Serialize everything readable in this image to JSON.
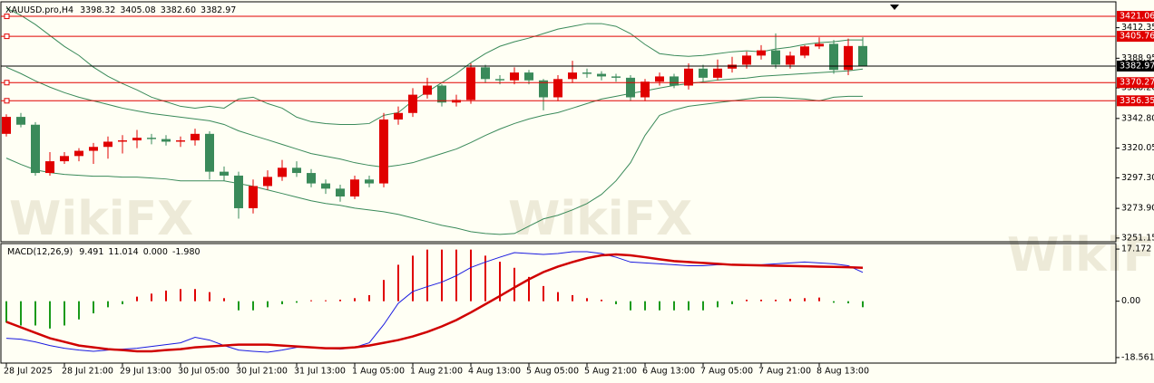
{
  "chart_data": [
    {
      "type": "candlestick",
      "title": "XAUUSD.pro,H4",
      "readout": [
        3398.32,
        3405.08,
        {
          "value": 3382.6,
          "label": "3382.60"
        },
        3382.97
      ],
      "watermark": "WikiFX",
      "categories": [
        "28 Jul 2025",
        null,
        null,
        null,
        "28 Jul 21:00",
        null,
        null,
        null,
        "29 Jul 13:00",
        null,
        null,
        null,
        "30 Jul 05:00",
        null,
        null,
        null,
        "30 Jul 21:00",
        null,
        null,
        null,
        "31 Jul 13:00",
        null,
        null,
        null,
        "1 Aug 05:00",
        null,
        null,
        null,
        "1 Aug 21:00",
        null,
        null,
        null,
        "4 Aug 13:00",
        null,
        null,
        null,
        "5 Aug 05:00",
        null,
        null,
        null,
        "5 Aug 21:00",
        null,
        null,
        null,
        "6 Aug 13:00",
        null,
        null,
        null,
        "7 Aug 05:00",
        null,
        null,
        null,
        "7 Aug 21:00",
        null,
        null,
        null,
        "8 Aug 13:00",
        null,
        null,
        null
      ],
      "open": [
        3331,
        3344,
        3338,
        3301,
        3310,
        3314,
        3318,
        3321,
        3325,
        3326,
        3328,
        3327,
        3325,
        3326,
        3331,
        3302,
        3299,
        3274,
        3291,
        3298,
        3305,
        3301,
        3293,
        3289,
        3283,
        3296,
        3293,
        3342,
        3347,
        3361,
        3368,
        3355,
        3357,
        3382,
        3373,
        3372,
        3378,
        3372,
        3359,
        3373,
        3378,
        3377,
        3375,
        3374,
        3359,
        3371,
        3375,
        3368,
        3381,
        3374,
        3381,
        3384,
        3391,
        3395,
        3384,
        3391,
        3398,
        3400,
        3380,
        3398.32
      ],
      "high": [
        3346,
        3347,
        3340,
        3317,
        3317,
        3320,
        3324,
        3329,
        3330,
        3334,
        3331,
        3330,
        3329,
        3335,
        3333,
        3306,
        3302,
        3296,
        3303,
        3311,
        3310,
        3304,
        3296,
        3292,
        3299,
        3299,
        3347,
        3352,
        3366,
        3374,
        3369,
        3361,
        3385,
        3384,
        3376,
        3382,
        3380,
        3373,
        3376,
        3387,
        3381,
        3379,
        3377,
        3376,
        3373,
        3378,
        3377,
        3385,
        3384,
        3388,
        3390,
        3394,
        3399,
        3408,
        3394,
        3399,
        3405,
        3403,
        3404,
        3405.08
      ],
      "low": [
        3329,
        3336,
        3299,
        3299,
        3308,
        3310,
        3308,
        3312,
        3316,
        3320,
        3323,
        3322,
        3321,
        3322,
        3296,
        3295,
        3266,
        3270,
        3288,
        3295,
        3298,
        3290,
        3285,
        3279,
        3281,
        3290,
        3290,
        3338,
        3344,
        3358,
        3352,
        3352,
        3354,
        3370,
        3369,
        3369,
        3369,
        3349,
        3356,
        3370,
        3374,
        3372,
        3371,
        3356,
        3356,
        3368,
        3366,
        3365,
        3371,
        3372,
        3378,
        3381,
        3388,
        3381,
        3381,
        3389,
        3396,
        3377,
        3376,
        3382.6
      ],
      "close": [
        3344,
        3338,
        3301,
        3310,
        3314,
        3318,
        3321,
        3325,
        3326,
        3328,
        3327,
        3325,
        3326,
        3331,
        3302,
        3299,
        3274,
        3291,
        3298,
        3305,
        3301,
        3293,
        3289,
        3283,
        3296,
        3293,
        3342,
        3347,
        3361,
        3368,
        3355,
        3357,
        3382,
        3373,
        3372,
        3378,
        3372,
        3359,
        3373,
        3378,
        3377,
        3375,
        3374,
        3359,
        3371,
        3375,
        3368,
        3381,
        3374,
        3381,
        3384,
        3391,
        3395,
        3384,
        3391,
        3398,
        3400,
        3380,
        3398.32,
        3382.97
      ],
      "up_color": "#e00000",
      "down_color": "#3a8a5a",
      "series": [
        {
          "color": "#3a8a5a",
          "values": [
            3427.3,
            3421.8,
            3414.8,
            3406.4,
            3398,
            3391.1,
            3382.1,
            3375.1,
            3369.5,
            3364.7,
            3359.1,
            3355.6,
            3352.1,
            3350.7,
            3352.1,
            3350.7,
            3357.7,
            3359.1,
            3354.2,
            3350.7,
            3343.8,
            3340.3,
            3338.9,
            3338.2,
            3338.2,
            3338.9,
            3345.2,
            3347.3,
            3356.3,
            3363.3,
            3370.2,
            3377.2,
            3385.5,
            3392.5,
            3398.1,
            3401.6,
            3404.4,
            3407.8,
            3411.3,
            3413.4,
            3415.5,
            3415.5,
            3413.4,
            3407.8,
            3399.5,
            3392.5,
            3391.1,
            3390.4,
            3391.1,
            3392.5,
            3393.9,
            3394.6,
            3393.9,
            3396,
            3397.4,
            3399.5,
            3400.9,
            3401.6,
            3403,
            3403
          ]
        },
        {
          "color": "#3a8a5a",
          "values": [
            3382.1,
            3377.2,
            3371.6,
            3366.8,
            3362.6,
            3359.1,
            3356.3,
            3353.5,
            3350.7,
            3348.6,
            3346.6,
            3345.2,
            3343.8,
            3342.4,
            3341,
            3338.2,
            3333.3,
            3329.8,
            3326.4,
            3322.9,
            3319.4,
            3315.9,
            3313.8,
            3311.7,
            3308.9,
            3306.9,
            3305.5,
            3306.9,
            3308.9,
            3312.4,
            3315.9,
            3319.4,
            3324.3,
            3329.8,
            3334.7,
            3338.9,
            3342.4,
            3345.2,
            3347.3,
            3350.7,
            3354.2,
            3357.7,
            3359.8,
            3361.9,
            3363.9,
            3366.1,
            3368.1,
            3369.5,
            3370.9,
            3372.3,
            3373,
            3373.7,
            3375.1,
            3375.8,
            3376.5,
            3377.2,
            3377.9,
            3378.6,
            3379.3,
            3380.7
          ]
        },
        {
          "color": "#3a8a5a",
          "values": [
            3312.4,
            3307.6,
            3303.4,
            3301.3,
            3299.9,
            3299.2,
            3298.5,
            3298.5,
            3297.8,
            3297.8,
            3297.1,
            3296.4,
            3295,
            3295,
            3295,
            3295,
            3292.9,
            3290.8,
            3288,
            3285.3,
            3282.5,
            3279.7,
            3277.6,
            3276.2,
            3274.1,
            3272.7,
            3271.3,
            3269.3,
            3266.5,
            3263.7,
            3260.9,
            3258.8,
            3256,
            3254.6,
            3253.9,
            3254.6,
            3260.2,
            3265.8,
            3268.6,
            3272.7,
            3277.6,
            3284.6,
            3295,
            3308.9,
            3329.8,
            3345.2,
            3349.3,
            3352.1,
            3353.5,
            3354.9,
            3356.3,
            3357.7,
            3359.1,
            3359.1,
            3358.4,
            3357.7,
            3356.3,
            3359.1,
            3359.8,
            3359.8
          ]
        }
      ],
      "levels": [
        3421.06,
        3405.76,
        3370.27,
        3356.35
      ],
      "level_color": "#e00000",
      "bid": 3382.97,
      "bid_color": "#000000",
      "ylim": [
        3248.3,
        3432.2
      ],
      "yticks": [
        3412.35,
        3388.95,
        {
          "value": 3366.2,
          "label": "3366.20"
        },
        {
          "value": 3342.8,
          "label": "3342.80"
        },
        3320.05,
        {
          "value": 3297.3,
          "label": "3297.30"
        },
        {
          "value": 3273.9,
          "label": "3273.90"
        },
        3251.15
      ]
    },
    {
      "type": "macd",
      "title": "MACD(12,26,9)",
      "readout": [
        9.491,
        11.014,
        {
          "value": 0,
          "label": "0.000"
        },
        {
          "value": -1.98,
          "label": "-1.980"
        }
      ],
      "histogram": {
        "up_color": "#e00000",
        "down_color": "#1a9a1a",
        "values": [
          -7,
          -8,
          -8,
          -9,
          -8,
          -6,
          -4,
          -2,
          -1,
          1.5,
          2.5,
          3.5,
          4,
          4,
          3,
          1,
          -3,
          -3,
          -2,
          -1,
          -0.5,
          0.3,
          0.3,
          0.5,
          1,
          2,
          7,
          12,
          15,
          17,
          17,
          17,
          17,
          15,
          13,
          11,
          8,
          5,
          3,
          2,
          1,
          0.5,
          -1,
          -3,
          -3,
          -3,
          -3,
          -3,
          -3,
          -2,
          -1,
          0.5,
          0.5,
          0.5,
          0.8,
          1,
          1.2,
          -0.5,
          -0.7,
          -1.98
        ]
      },
      "series": [
        {
          "color": "#1a1ae0",
          "width": 1,
          "values": [
            -12.2,
            -12.5,
            -13.4,
            -14.6,
            -15.5,
            -16.1,
            -16.5,
            -16.1,
            -15.8,
            -15.5,
            -14.9,
            -14.3,
            -13.7,
            -11.9,
            -12.8,
            -14.6,
            -16.1,
            -16.5,
            -16.8,
            -16.1,
            -15.2,
            -15.2,
            -15.5,
            -15.8,
            -15.2,
            -13.7,
            -7.7,
            -0.7,
            3.2,
            4.8,
            6.3,
            8.4,
            11.1,
            12.9,
            14.5,
            16,
            15.7,
            15.4,
            15.7,
            16.3,
            16.3,
            15.7,
            14.5,
            12.9,
            12.6,
            12.3,
            12,
            11.7,
            11.7,
            12,
            12,
            12,
            12,
            12.3,
            12.6,
            12.9,
            12.6,
            12.3,
            11.7,
            9.491
          ]
        },
        {
          "color": "#d00000",
          "width": 2.5,
          "values": [
            -6.8,
            -8.6,
            -10.4,
            -12.2,
            -13.4,
            -14.6,
            -15.2,
            -15.8,
            -16.1,
            -16.5,
            -16.5,
            -16.1,
            -15.8,
            -15.2,
            -14.9,
            -14.6,
            -14.3,
            -14.3,
            -14.3,
            -14.6,
            -14.9,
            -15.2,
            -15.5,
            -15.5,
            -15.2,
            -14.6,
            -13.7,
            -12.8,
            -11.6,
            -10.1,
            -8.3,
            -6.2,
            -3.7,
            -1,
            1.7,
            4.5,
            7.2,
            9.6,
            11.4,
            12.9,
            14.2,
            15.1,
            15.4,
            15.1,
            14.5,
            13.8,
            13.2,
            12.9,
            12.6,
            12.3,
            12,
            11.9,
            11.8,
            11.7,
            11.6,
            11.5,
            11.4,
            11.3,
            11.2,
            11.014
          ]
        }
      ],
      "ylim": [
        -20.38,
        18.99
      ],
      "yticks": [
        17.172,
        {
          "value": 0,
          "label": "0.00"
        },
        -18.561
      ]
    }
  ]
}
